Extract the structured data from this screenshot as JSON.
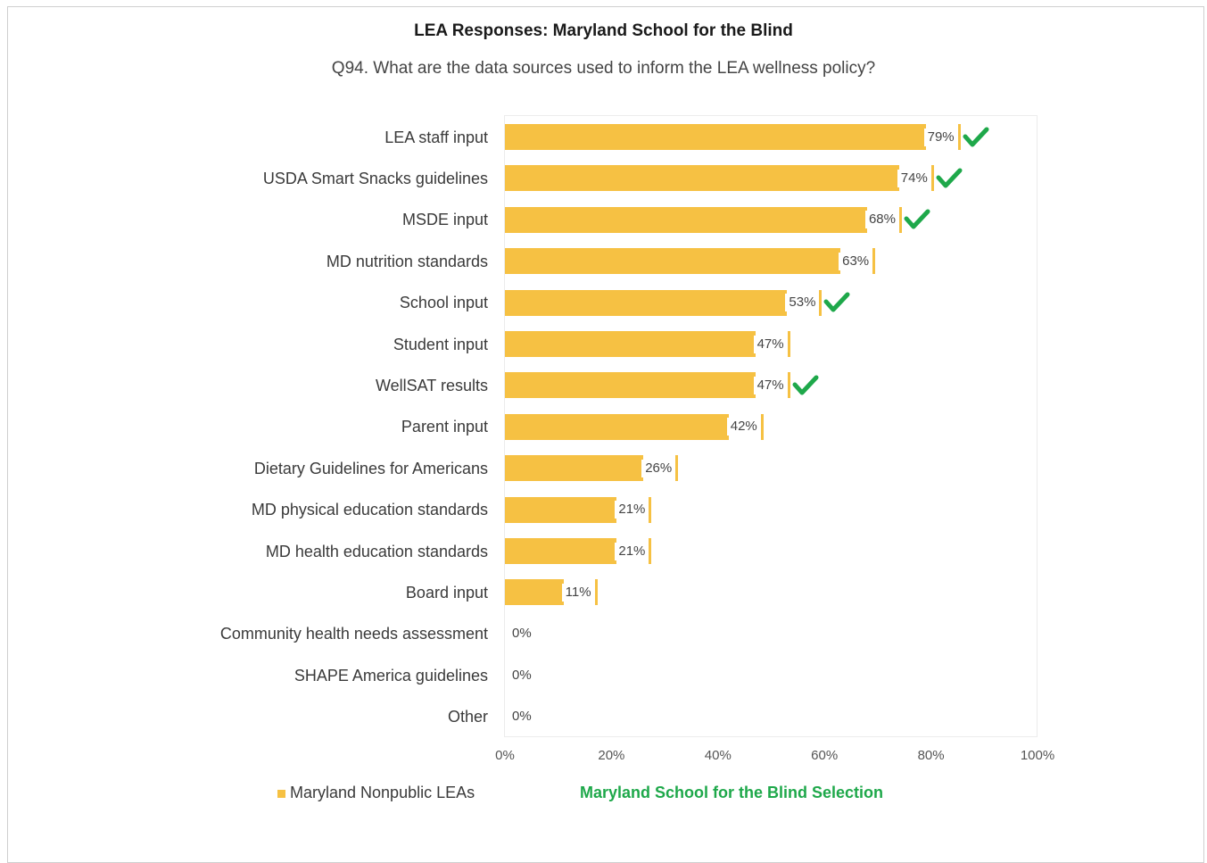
{
  "chart_data": {
    "type": "bar",
    "orientation": "horizontal",
    "title": "LEA Responses: Maryland School for the Blind",
    "subtitle": "Q94. What are the data sources used to inform the LEA wellness policy?",
    "categories": [
      "LEA staff input",
      "USDA Smart Snacks guidelines",
      "MSDE input",
      "MD nutrition standards",
      "School input",
      "Student input",
      "WellSAT results",
      "Parent input",
      "Dietary Guidelines for Americans",
      "MD physical education standards",
      "MD health education standards",
      "Board input",
      "Community health needs assessment",
      "SHAPE America guidelines",
      "Other"
    ],
    "series": [
      {
        "name": "Maryland Nonpublic LEAs",
        "values": [
          79,
          74,
          68,
          63,
          53,
          47,
          47,
          42,
          26,
          21,
          21,
          11,
          0,
          0,
          0
        ],
        "value_labels": [
          "79%",
          "74%",
          "68%",
          "63%",
          "53%",
          "47%",
          "47%",
          "42%",
          "26%",
          "21%",
          "21%",
          "11%",
          "0%",
          "0%",
          "0%"
        ],
        "color": "#f6c143"
      },
      {
        "name": "Maryland School for the Blind Selection",
        "selected": [
          true,
          true,
          true,
          false,
          true,
          false,
          true,
          false,
          false,
          false,
          false,
          false,
          false,
          false,
          false
        ],
        "marker": "check-icon",
        "color": "#1ea84a"
      }
    ],
    "xlim": [
      0,
      100
    ],
    "x_ticks": [
      "0%",
      "20%",
      "40%",
      "60%",
      "80%",
      "100%"
    ],
    "grid": false,
    "legend_position": "bottom"
  }
}
